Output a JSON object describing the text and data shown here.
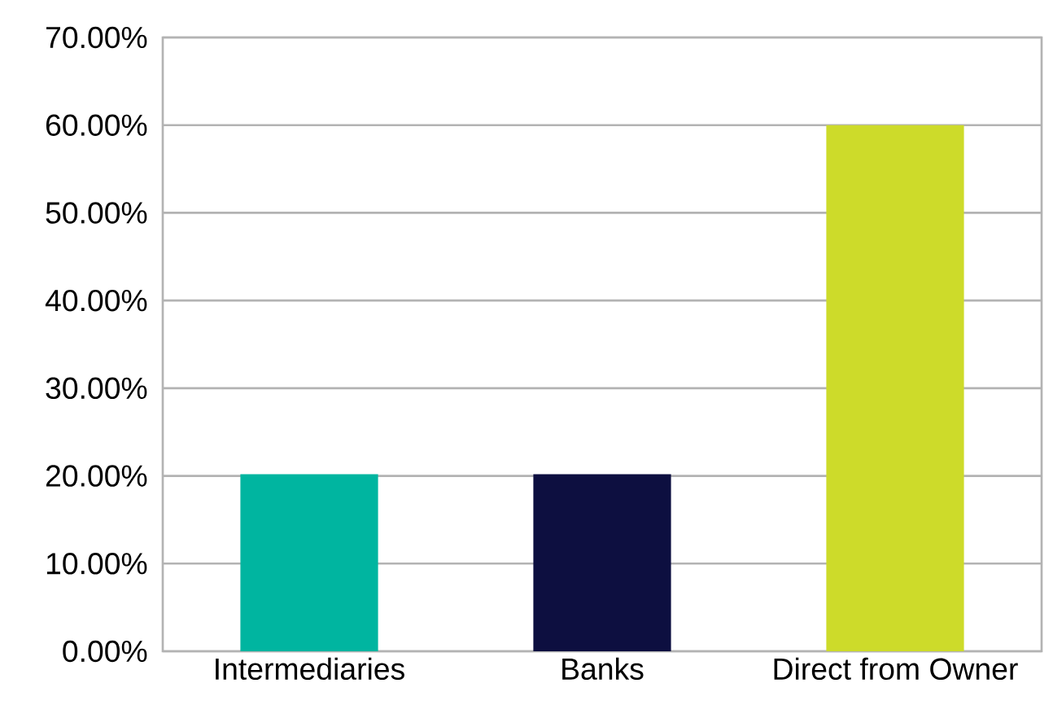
{
  "chart_data": {
    "type": "bar",
    "categories": [
      "Intermediaries",
      "Banks",
      "Direct from Owner"
    ],
    "values": [
      20.2,
      20.2,
      60
    ],
    "colors": [
      "#00b5a0",
      "#0d0f40",
      "#cddb2a"
    ],
    "ylim": [
      0,
      70
    ],
    "yticks": [
      {
        "value": 0,
        "label": "0.00%"
      },
      {
        "value": 10,
        "label": "10.00%"
      },
      {
        "value": 20,
        "label": "20.00%"
      },
      {
        "value": 30,
        "label": "30.00%"
      },
      {
        "value": 40,
        "label": "40.00%"
      },
      {
        "value": 50,
        "label": "50.00%"
      },
      {
        "value": 60,
        "label": "60.00%"
      },
      {
        "value": 70,
        "label": "70.00%"
      }
    ],
    "grid": true
  }
}
